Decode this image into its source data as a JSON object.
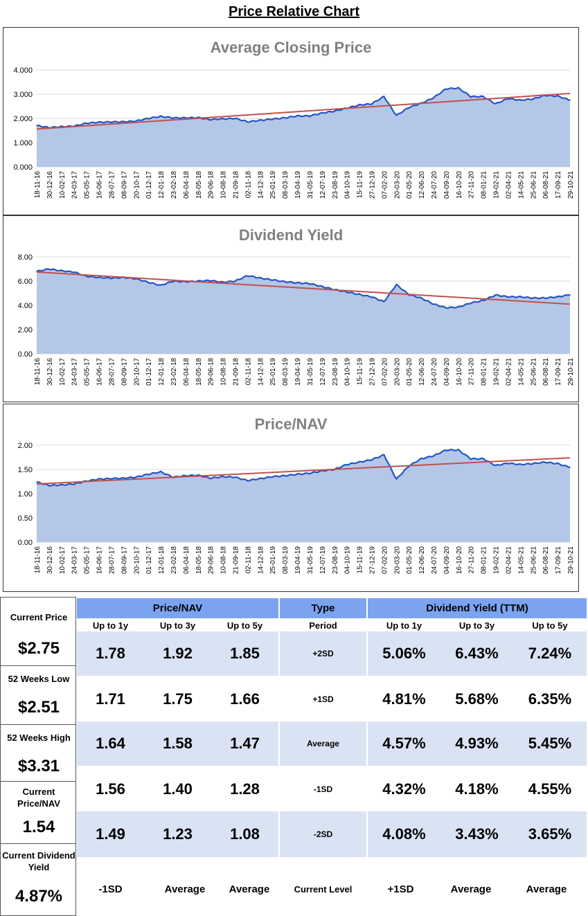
{
  "page": {
    "title": "Price Relative Chart"
  },
  "chart_data": [
    {
      "type": "area",
      "title": "Average Closing Price",
      "ylim": [
        0,
        4
      ],
      "yticks": [
        "0.000",
        "1.000",
        "2.000",
        "3.000",
        "4.000"
      ],
      "categories": [
        "18-11-16",
        "30-12-16",
        "10-02-17",
        "24-03-17",
        "05-05-17",
        "16-06-17",
        "28-07-17",
        "08-09-17",
        "20-10-17",
        "01-12-17",
        "12-01-18",
        "23-02-18",
        "06-04-18",
        "18-05-18",
        "29-06-18",
        "10-08-18",
        "21-09-18",
        "02-11-18",
        "14-12-18",
        "25-01-19",
        "08-03-19",
        "19-04-19",
        "31-05-19",
        "12-07-19",
        "23-08-19",
        "04-10-19",
        "15-11-19",
        "27-12-19",
        "07-02-20",
        "20-03-20",
        "01-05-20",
        "12-06-20",
        "24-07-20",
        "04-09-20",
        "16-10-20",
        "27-11-20",
        "08-01-21",
        "19-02-21",
        "02-04-21",
        "14-05-21",
        "25-06-21",
        "06-08-21",
        "17-09-21",
        "29-10-21"
      ],
      "series": [
        {
          "name": "Average Closing Price",
          "values": [
            1.7,
            1.62,
            1.66,
            1.68,
            1.8,
            1.84,
            1.85,
            1.86,
            1.89,
            2.0,
            2.08,
            2.02,
            2.02,
            2.03,
            1.95,
            1.98,
            2.0,
            1.86,
            1.92,
            1.97,
            2.02,
            2.1,
            2.1,
            2.22,
            2.3,
            2.42,
            2.55,
            2.6,
            2.9,
            2.12,
            2.45,
            2.62,
            2.85,
            3.22,
            3.25,
            2.9,
            2.9,
            2.6,
            2.82,
            2.75,
            2.8,
            2.95,
            2.92,
            2.75
          ]
        }
      ],
      "trendline": {
        "start": 1.56,
        "end": 3.03
      }
    },
    {
      "type": "area",
      "title": "Dividend Yield",
      "ylim": [
        0,
        8
      ],
      "yticks": [
        "0.00",
        "2.00",
        "4.00",
        "6.00",
        "8.00"
      ],
      "categories": [
        "18-11-16",
        "30-12-16",
        "10-02-17",
        "24-03-17",
        "05-05-17",
        "16-06-17",
        "28-07-17",
        "08-09-17",
        "20-10-17",
        "01-12-17",
        "12-01-18",
        "23-02-18",
        "06-04-18",
        "18-05-18",
        "29-06-18",
        "10-08-18",
        "21-09-18",
        "02-11-18",
        "14-12-18",
        "25-01-19",
        "08-03-19",
        "19-04-19",
        "31-05-19",
        "12-07-19",
        "23-08-19",
        "04-10-19",
        "15-11-19",
        "27-12-19",
        "07-02-20",
        "20-03-20",
        "01-05-20",
        "12-06-20",
        "24-07-20",
        "04-09-20",
        "16-10-20",
        "27-11-20",
        "08-01-21",
        "19-02-21",
        "02-04-21",
        "14-05-21",
        "25-06-21",
        "06-08-21",
        "17-09-21",
        "29-10-21"
      ],
      "series": [
        {
          "name": "Dividend Yield",
          "values": [
            6.8,
            7.0,
            6.85,
            6.75,
            6.4,
            6.3,
            6.25,
            6.3,
            6.2,
            5.9,
            5.65,
            6.0,
            5.95,
            6.0,
            6.05,
            5.9,
            6.0,
            6.45,
            6.25,
            6.1,
            5.95,
            5.85,
            5.8,
            5.55,
            5.3,
            5.1,
            4.9,
            4.7,
            4.3,
            5.7,
            4.9,
            4.6,
            4.1,
            3.8,
            3.85,
            4.2,
            4.4,
            4.85,
            4.7,
            4.7,
            4.6,
            4.6,
            4.7,
            4.87
          ]
        }
      ],
      "trendline": {
        "start": 6.75,
        "end": 4.1
      }
    },
    {
      "type": "area",
      "title": "Price/NAV",
      "ylim": [
        0,
        2
      ],
      "yticks": [
        "0.00",
        "0.50",
        "1.00",
        "1.50",
        "2.00"
      ],
      "categories": [
        "18-11-16",
        "30-12-16",
        "10-02-17",
        "24-03-17",
        "05-05-17",
        "16-06-17",
        "28-07-17",
        "08-09-17",
        "20-10-17",
        "01-12-17",
        "12-01-18",
        "23-02-18",
        "06-04-18",
        "18-05-18",
        "29-06-18",
        "10-08-18",
        "21-09-18",
        "02-11-18",
        "14-12-18",
        "25-01-19",
        "08-03-19",
        "19-04-19",
        "31-05-19",
        "12-07-19",
        "23-08-19",
        "04-10-19",
        "15-11-19",
        "27-12-19",
        "07-02-20",
        "20-03-20",
        "01-05-20",
        "12-06-20",
        "24-07-20",
        "04-09-20",
        "16-10-20",
        "27-11-20",
        "08-01-21",
        "19-02-21",
        "02-04-21",
        "14-05-21",
        "25-06-21",
        "06-08-21",
        "17-09-21",
        "29-10-21"
      ],
      "series": [
        {
          "name": "Price/NAV",
          "values": [
            1.24,
            1.17,
            1.18,
            1.2,
            1.26,
            1.3,
            1.31,
            1.32,
            1.34,
            1.4,
            1.45,
            1.34,
            1.37,
            1.38,
            1.32,
            1.35,
            1.34,
            1.27,
            1.31,
            1.35,
            1.37,
            1.4,
            1.42,
            1.47,
            1.5,
            1.6,
            1.65,
            1.7,
            1.8,
            1.3,
            1.57,
            1.72,
            1.78,
            1.9,
            1.9,
            1.72,
            1.72,
            1.58,
            1.63,
            1.6,
            1.62,
            1.65,
            1.62,
            1.54
          ]
        }
      ],
      "trendline": {
        "start": 1.2,
        "end": 1.74
      }
    }
  ],
  "summary": {
    "left": [
      {
        "label": "Current Price",
        "value": "$2.75"
      },
      {
        "label": "52 Weeks Low",
        "value": "$2.51"
      },
      {
        "label": "52 Weeks High",
        "value": "$3.31"
      },
      {
        "label": "Current Price/NAV",
        "value": "1.54"
      },
      {
        "label": "Current Dividend Yield",
        "value": "4.87%"
      }
    ],
    "headers": {
      "price_nav": "Price/NAV",
      "type": "Type",
      "dividend": "Dividend Yield (TTM)"
    },
    "subheaders": {
      "price_nav": [
        "Up to 1y",
        "Up to 3y",
        "Up to 5y"
      ],
      "type": "Period",
      "dividend": [
        "Up to 1y",
        "Up to 3y",
        "Up to 5y"
      ]
    },
    "rows": [
      {
        "price_nav": [
          "1.78",
          "1.92",
          "1.85"
        ],
        "type": "+2SD",
        "dividend": [
          "5.06%",
          "6.43%",
          "7.24%"
        ]
      },
      {
        "price_nav": [
          "1.71",
          "1.75",
          "1.66"
        ],
        "type": "+1SD",
        "dividend": [
          "4.81%",
          "5.68%",
          "6.35%"
        ]
      },
      {
        "price_nav": [
          "1.64",
          "1.58",
          "1.47"
        ],
        "type": "Average",
        "dividend": [
          "4.57%",
          "4.93%",
          "5.45%"
        ]
      },
      {
        "price_nav": [
          "1.56",
          "1.40",
          "1.28"
        ],
        "type": "-1SD",
        "dividend": [
          "4.32%",
          "4.18%",
          "4.55%"
        ]
      },
      {
        "price_nav": [
          "1.49",
          "1.23",
          "1.08"
        ],
        "type": "-2SD",
        "dividend": [
          "4.08%",
          "3.43%",
          "3.65%"
        ]
      }
    ],
    "footer": {
      "price_nav": [
        "-1SD",
        "Average",
        "Average"
      ],
      "type": "Current Level",
      "dividend": [
        "+1SD",
        "Average",
        "Average"
      ]
    }
  },
  "colors": {
    "area_fill": "#b4c7e7",
    "line": "#2455c3",
    "trend": "#c0504d",
    "grid": "#d9d9d9",
    "header": "#7ba3f0",
    "band": "#dae3f3"
  }
}
